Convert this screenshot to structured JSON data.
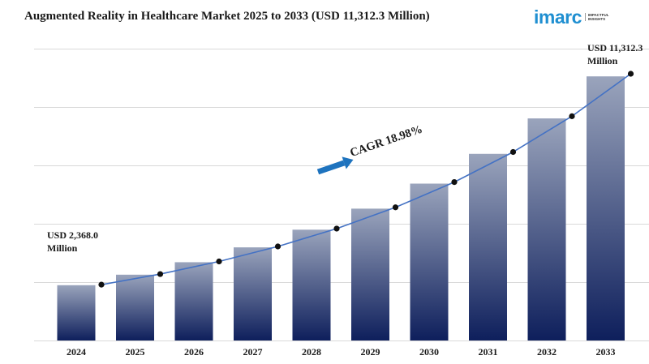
{
  "header": {
    "title": "Augmented Reality in Healthcare Market 2025 to 2033 (USD 11,312.3 Million)"
  },
  "logo": {
    "name": "imarc",
    "tagline": [
      "IMPACTFUL",
      "INSIGHTS"
    ]
  },
  "annotations": {
    "start_line1": "USD 2,368.0",
    "start_line2": "Million",
    "end_line1": "USD 11,312.3",
    "end_line2": "Million",
    "cagr": "CAGR 18.98%"
  },
  "colors": {
    "bar_top": "#9aa4bc",
    "bar_bottom": "#0e1f5c",
    "line": "#4472c4",
    "marker": "#111111",
    "arrow": "#1e73be",
    "grid": "#d9d9d9",
    "logo": "#1f8fd1"
  },
  "chart_data": {
    "type": "bar",
    "categories": [
      "2024",
      "2025",
      "2026",
      "2027",
      "2028",
      "2029",
      "2030",
      "2031",
      "2032",
      "2033"
    ],
    "values": [
      2368.0,
      2818,
      3353,
      3989,
      4746,
      5647,
      6719,
      7994,
      9512,
      11312.3
    ],
    "overlay_line": {
      "type": "line",
      "values": [
        2368.0,
        2818,
        3353,
        3989,
        4746,
        5647,
        6719,
        7994,
        9512,
        11312.3
      ]
    },
    "ylim": [
      0,
      12500
    ],
    "grid": true,
    "y_axis_visible": false
  }
}
